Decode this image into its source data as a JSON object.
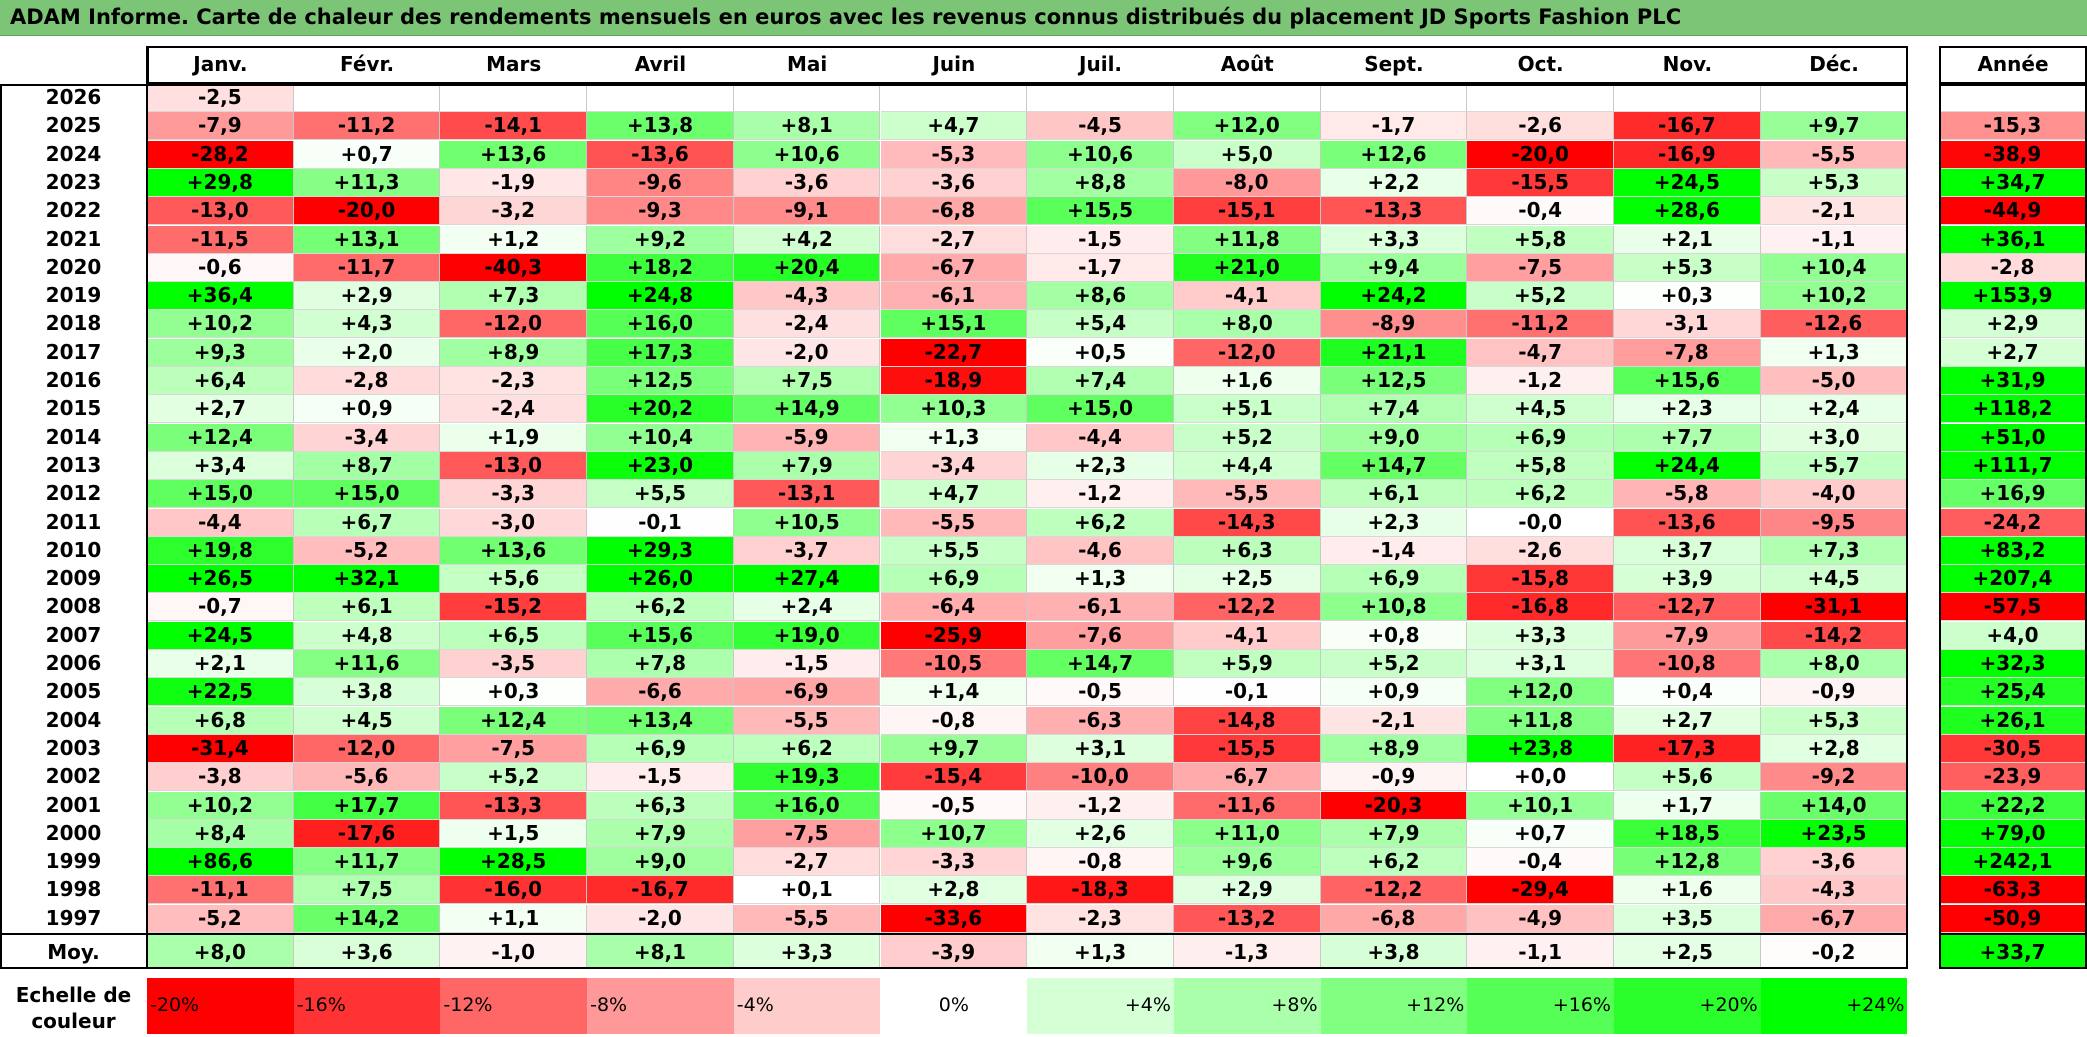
{
  "title": "ADAM Informe. Carte de chaleur des rendements mensuels en euros avec les revenus connus distribués du placement JD Sports Fashion PLC",
  "chart_data": {
    "type": "heatmap",
    "columns": [
      "Janv.",
      "Févr.",
      "Mars",
      "Avril",
      "Mai",
      "Juin",
      "Juil.",
      "Août",
      "Sept.",
      "Oct.",
      "Nov.",
      "Déc."
    ],
    "year_header": "Année",
    "avg_label": "Moy.",
    "rows": [
      {
        "year": "2026",
        "values": [
          "-2,5",
          "",
          "",
          "",
          "",
          "",
          "",
          "",
          "",
          "",
          "",
          ""
        ],
        "annual": ""
      },
      {
        "year": "2025",
        "values": [
          "-7,9",
          "-11,2",
          "-14,1",
          "+13,8",
          "+8,1",
          "+4,7",
          "-4,5",
          "+12,0",
          "-1,7",
          "-2,6",
          "-16,7",
          "+9,7"
        ],
        "annual": "-15,3"
      },
      {
        "year": "2024",
        "values": [
          "-28,2",
          "+0,7",
          "+13,6",
          "-13,6",
          "+10,6",
          "-5,3",
          "+10,6",
          "+5,0",
          "+12,6",
          "-20,0",
          "-16,9",
          "-5,5"
        ],
        "annual": "-38,9"
      },
      {
        "year": "2023",
        "values": [
          "+29,8",
          "+11,3",
          "-1,9",
          "-9,6",
          "-3,6",
          "-3,6",
          "+8,8",
          "-8,0",
          "+2,2",
          "-15,5",
          "+24,5",
          "+5,3"
        ],
        "annual": "+34,7"
      },
      {
        "year": "2022",
        "values": [
          "-13,0",
          "-20,0",
          "-3,2",
          "-9,3",
          "-9,1",
          "-6,8",
          "+15,5",
          "-15,1",
          "-13,3",
          "-0,4",
          "+28,6",
          "-2,1"
        ],
        "annual": "-44,9"
      },
      {
        "year": "2021",
        "values": [
          "-11,5",
          "+13,1",
          "+1,2",
          "+9,2",
          "+4,2",
          "-2,7",
          "-1,5",
          "+11,8",
          "+3,3",
          "+5,8",
          "+2,1",
          "-1,1"
        ],
        "annual": "+36,1"
      },
      {
        "year": "2020",
        "values": [
          "-0,6",
          "-11,7",
          "-40,3",
          "+18,2",
          "+20,4",
          "-6,7",
          "-1,7",
          "+21,0",
          "+9,4",
          "-7,5",
          "+5,3",
          "+10,4"
        ],
        "annual": "-2,8"
      },
      {
        "year": "2019",
        "values": [
          "+36,4",
          "+2,9",
          "+7,3",
          "+24,8",
          "-4,3",
          "-6,1",
          "+8,6",
          "-4,1",
          "+24,2",
          "+5,2",
          "+0,3",
          "+10,2"
        ],
        "annual": "+153,9"
      },
      {
        "year": "2018",
        "values": [
          "+10,2",
          "+4,3",
          "-12,0",
          "+16,0",
          "-2,4",
          "+15,1",
          "+5,4",
          "+8,0",
          "-8,9",
          "-11,2",
          "-3,1",
          "-12,6"
        ],
        "annual": "+2,9"
      },
      {
        "year": "2017",
        "values": [
          "+9,3",
          "+2,0",
          "+8,9",
          "+17,3",
          "-2,0",
          "-22,7",
          "+0,5",
          "-12,0",
          "+21,1",
          "-4,7",
          "-7,8",
          "+1,3"
        ],
        "annual": "+2,7"
      },
      {
        "year": "2016",
        "values": [
          "+6,4",
          "-2,8",
          "-2,3",
          "+12,5",
          "+7,5",
          "-18,9",
          "+7,4",
          "+1,6",
          "+12,5",
          "-1,2",
          "+15,6",
          "-5,0"
        ],
        "annual": "+31,9"
      },
      {
        "year": "2015",
        "values": [
          "+2,7",
          "+0,9",
          "-2,4",
          "+20,2",
          "+14,9",
          "+10,3",
          "+15,0",
          "+5,1",
          "+7,4",
          "+4,5",
          "+2,3",
          "+2,4"
        ],
        "annual": "+118,2"
      },
      {
        "year": "2014",
        "values": [
          "+12,4",
          "-3,4",
          "+1,9",
          "+10,4",
          "-5,9",
          "+1,3",
          "-4,4",
          "+5,2",
          "+9,0",
          "+6,9",
          "+7,7",
          "+3,0"
        ],
        "annual": "+51,0"
      },
      {
        "year": "2013",
        "values": [
          "+3,4",
          "+8,7",
          "-13,0",
          "+23,0",
          "+7,9",
          "-3,4",
          "+2,3",
          "+4,4",
          "+14,7",
          "+5,8",
          "+24,4",
          "+5,7"
        ],
        "annual": "+111,7"
      },
      {
        "year": "2012",
        "values": [
          "+15,0",
          "+15,0",
          "-3,3",
          "+5,5",
          "-13,1",
          "+4,7",
          "-1,2",
          "-5,5",
          "+6,1",
          "+6,2",
          "-5,8",
          "-4,0"
        ],
        "annual": "+16,9"
      },
      {
        "year": "2011",
        "values": [
          "-4,4",
          "+6,7",
          "-3,0",
          "-0,1",
          "+10,5",
          "-5,5",
          "+6,2",
          "-14,3",
          "+2,3",
          "-0,0",
          "-13,6",
          "-9,5"
        ],
        "annual": "-24,2"
      },
      {
        "year": "2010",
        "values": [
          "+19,8",
          "-5,2",
          "+13,6",
          "+29,3",
          "-3,7",
          "+5,5",
          "-4,6",
          "+6,3",
          "-1,4",
          "-2,6",
          "+3,7",
          "+7,3"
        ],
        "annual": "+83,2"
      },
      {
        "year": "2009",
        "values": [
          "+26,5",
          "+32,1",
          "+5,6",
          "+26,0",
          "+27,4",
          "+6,9",
          "+1,3",
          "+2,5",
          "+6,9",
          "-15,8",
          "+3,9",
          "+4,5"
        ],
        "annual": "+207,4"
      },
      {
        "year": "2008",
        "values": [
          "-0,7",
          "+6,1",
          "-15,2",
          "+6,2",
          "+2,4",
          "-6,4",
          "-6,1",
          "-12,2",
          "+10,8",
          "-16,8",
          "-12,7",
          "-31,1"
        ],
        "annual": "-57,5"
      },
      {
        "year": "2007",
        "values": [
          "+24,5",
          "+4,8",
          "+6,5",
          "+15,6",
          "+19,0",
          "-25,9",
          "-7,6",
          "-4,1",
          "+0,8",
          "+3,3",
          "-7,9",
          "-14,2"
        ],
        "annual": "+4,0"
      },
      {
        "year": "2006",
        "values": [
          "+2,1",
          "+11,6",
          "-3,5",
          "+7,8",
          "-1,5",
          "-10,5",
          "+14,7",
          "+5,9",
          "+5,2",
          "+3,1",
          "-10,8",
          "+8,0"
        ],
        "annual": "+32,3"
      },
      {
        "year": "2005",
        "values": [
          "+22,5",
          "+3,8",
          "+0,3",
          "-6,6",
          "-6,9",
          "+1,4",
          "-0,5",
          "-0,1",
          "+0,9",
          "+12,0",
          "+0,4",
          "-0,9"
        ],
        "annual": "+25,4"
      },
      {
        "year": "2004",
        "values": [
          "+6,8",
          "+4,5",
          "+12,4",
          "+13,4",
          "-5,5",
          "-0,8",
          "-6,3",
          "-14,8",
          "-2,1",
          "+11,8",
          "+2,7",
          "+5,3"
        ],
        "annual": "+26,1"
      },
      {
        "year": "2003",
        "values": [
          "-31,4",
          "-12,0",
          "-7,5",
          "+6,9",
          "+6,2",
          "+9,7",
          "+3,1",
          "-15,5",
          "+8,9",
          "+23,8",
          "-17,3",
          "+2,8"
        ],
        "annual": "-30,5"
      },
      {
        "year": "2002",
        "values": [
          "-3,8",
          "-5,6",
          "+5,2",
          "-1,5",
          "+19,3",
          "-15,4",
          "-10,0",
          "-6,7",
          "-0,9",
          "+0,0",
          "+5,6",
          "-9,2"
        ],
        "annual": "-23,9"
      },
      {
        "year": "2001",
        "values": [
          "+10,2",
          "+17,7",
          "-13,3",
          "+6,3",
          "+16,0",
          "-0,5",
          "-1,2",
          "-11,6",
          "-20,3",
          "+10,1",
          "+1,7",
          "+14,0"
        ],
        "annual": "+22,2"
      },
      {
        "year": "2000",
        "values": [
          "+8,4",
          "-17,6",
          "+1,5",
          "+7,9",
          "-7,5",
          "+10,7",
          "+2,6",
          "+11,0",
          "+7,9",
          "+0,7",
          "+18,5",
          "+23,5"
        ],
        "annual": "+79,0"
      },
      {
        "year": "1999",
        "values": [
          "+86,6",
          "+11,7",
          "+28,5",
          "+9,0",
          "-2,7",
          "-3,3",
          "-0,8",
          "+9,6",
          "+6,2",
          "-0,4",
          "+12,8",
          "-3,6"
        ],
        "annual": "+242,1"
      },
      {
        "year": "1998",
        "values": [
          "-11,1",
          "+7,5",
          "-16,0",
          "-16,7",
          "+0,1",
          "+2,8",
          "-18,3",
          "+2,9",
          "-12,2",
          "-29,4",
          "+1,6",
          "-4,3"
        ],
        "annual": "-63,3"
      },
      {
        "year": "1997",
        "values": [
          "-5,2",
          "+14,2",
          "+1,1",
          "-2,0",
          "-5,5",
          "-33,6",
          "-2,3",
          "-13,2",
          "-6,8",
          "-4,9",
          "+3,5",
          "-6,7"
        ],
        "annual": "-50,9"
      }
    ],
    "averages": [
      "+8,0",
      "+3,6",
      "-1,0",
      "+8,1",
      "+3,3",
      "-3,9",
      "+1,3",
      "-1,3",
      "+3,8",
      "-1,1",
      "+2,5",
      "-0,2"
    ],
    "annual_average": "+33,7",
    "color_scale": {
      "label_line1": "Echelle de",
      "label_line2": "couleur",
      "stops": [
        "-20%",
        "-16%",
        "-12%",
        "-8%",
        "-4%",
        "0%",
        "+4%",
        "+8%",
        "+12%",
        "+16%",
        "+20%",
        "+24%"
      ]
    }
  }
}
